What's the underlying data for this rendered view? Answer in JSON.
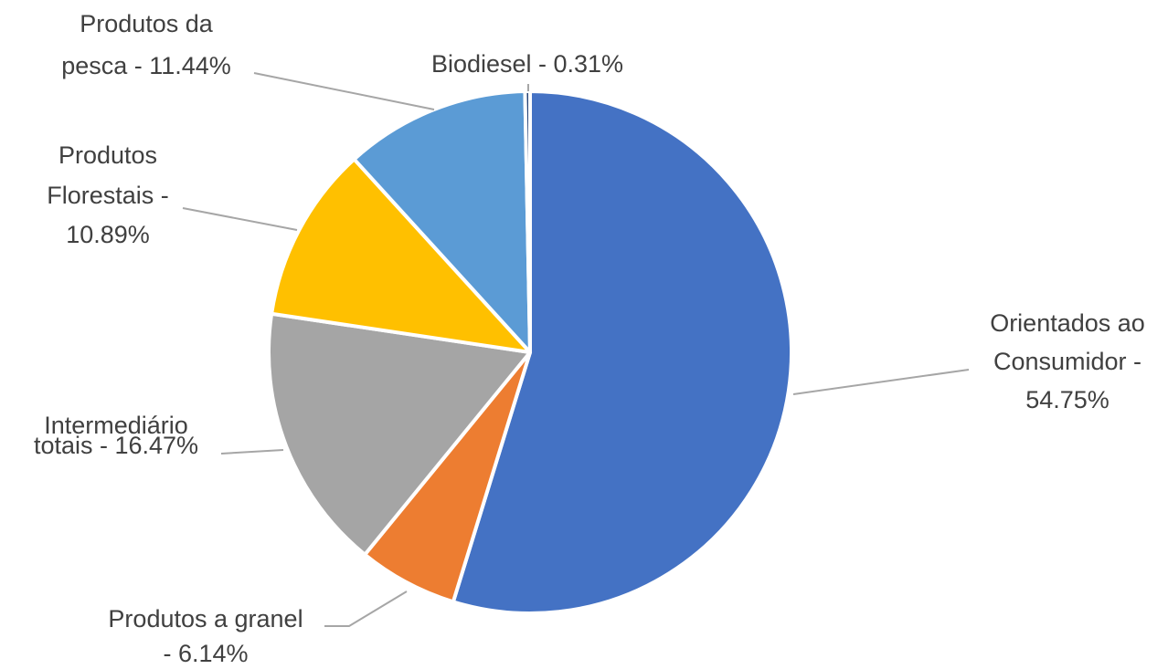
{
  "chart_data": {
    "type": "pie",
    "values": [
      54.75,
      6.14,
      16.47,
      10.89,
      11.44,
      0.31
    ],
    "value_labels": [
      [
        "Orientados ao",
        "Consumidor -",
        "54.75%"
      ],
      [
        "Produtos a granel",
        "- 6.14%"
      ],
      [
        "Intermediário",
        "totais - 16.47%"
      ],
      [
        "Produtos",
        "Florestais -",
        "10.89%"
      ],
      [
        "Produtos da",
        "pesca - 11.44%"
      ],
      [
        "Biodiesel - 0.31%"
      ]
    ],
    "colors": [
      "#4472c4",
      "#ed7d31",
      "#a5a5a5",
      "#ffc000",
      "#5b9bd5",
      "#264478"
    ]
  }
}
